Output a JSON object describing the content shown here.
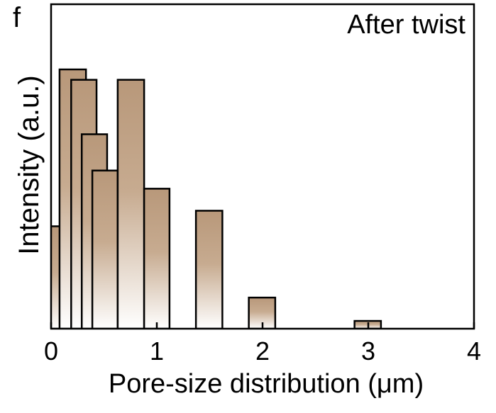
{
  "panel_label": "f",
  "annotation": "After twist",
  "chart_data": {
    "type": "bar",
    "xlabel": "Pore-size distribution (μm)",
    "ylabel": "Intensity (a.u.)",
    "xlim": [
      0,
      4
    ],
    "ylim": [
      0,
      1
    ],
    "xticks": [
      0,
      1,
      2,
      3,
      4
    ],
    "yticks_shown": false,
    "grid": false,
    "bar_color": "#b8987a",
    "bar_gradient_end": "#ffffff",
    "bars": [
      {
        "x0": -0.1,
        "x1": 0.1,
        "value": 0.395
      },
      {
        "x0": 0.08,
        "x1": 0.33,
        "value": 1.0
      },
      {
        "x0": 0.19,
        "x1": 0.43,
        "value": 0.96
      },
      {
        "x0": 0.29,
        "x1": 0.53,
        "value": 0.75
      },
      {
        "x0": 0.39,
        "x1": 0.63,
        "value": 0.61
      },
      {
        "x0": 0.63,
        "x1": 0.88,
        "value": 0.96
      },
      {
        "x0": 0.88,
        "x1": 1.12,
        "value": 0.54
      },
      {
        "x0": 1.37,
        "x1": 1.62,
        "value": 0.455
      },
      {
        "x0": 1.87,
        "x1": 2.12,
        "value": 0.12
      },
      {
        "x0": 2.87,
        "x1": 3.12,
        "value": 0.03
      }
    ]
  }
}
